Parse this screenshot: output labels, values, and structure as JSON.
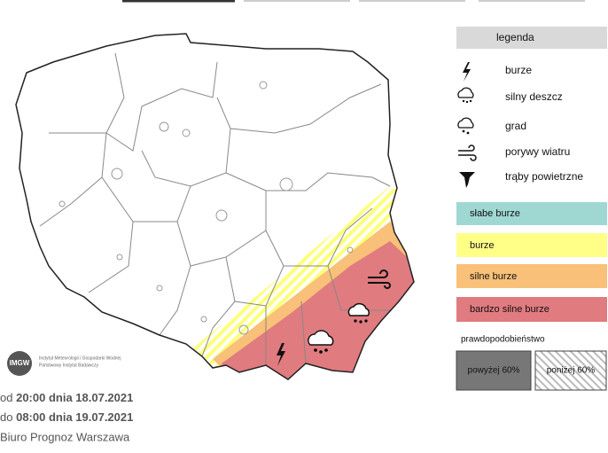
{
  "legend": {
    "title": "legenda",
    "phenomena": [
      "burze",
      "silny deszcz",
      "grad",
      "porywy wiatru",
      "trąby powietrzne"
    ],
    "levels": [
      "słabe burze",
      "burze",
      "silne burze",
      "bardzo silne burze"
    ],
    "probability": {
      "title": "prawdopodobieństwo",
      "above": "powyżej 60%",
      "below": "poniżej 60%"
    }
  },
  "logo": {
    "abbr": "IMGW",
    "line1": "Instytut Meteorologii i Gospodarki Wodnej",
    "line2": "Państwowy Instytut Badawczy"
  },
  "footer": {
    "from_prefix": "od",
    "from": "20:00 dnia 18.07.2021",
    "to_prefix": "do",
    "to": "08:00 dnia 19.07.2021",
    "office": "Biuro Prognoz Warszawa"
  }
}
